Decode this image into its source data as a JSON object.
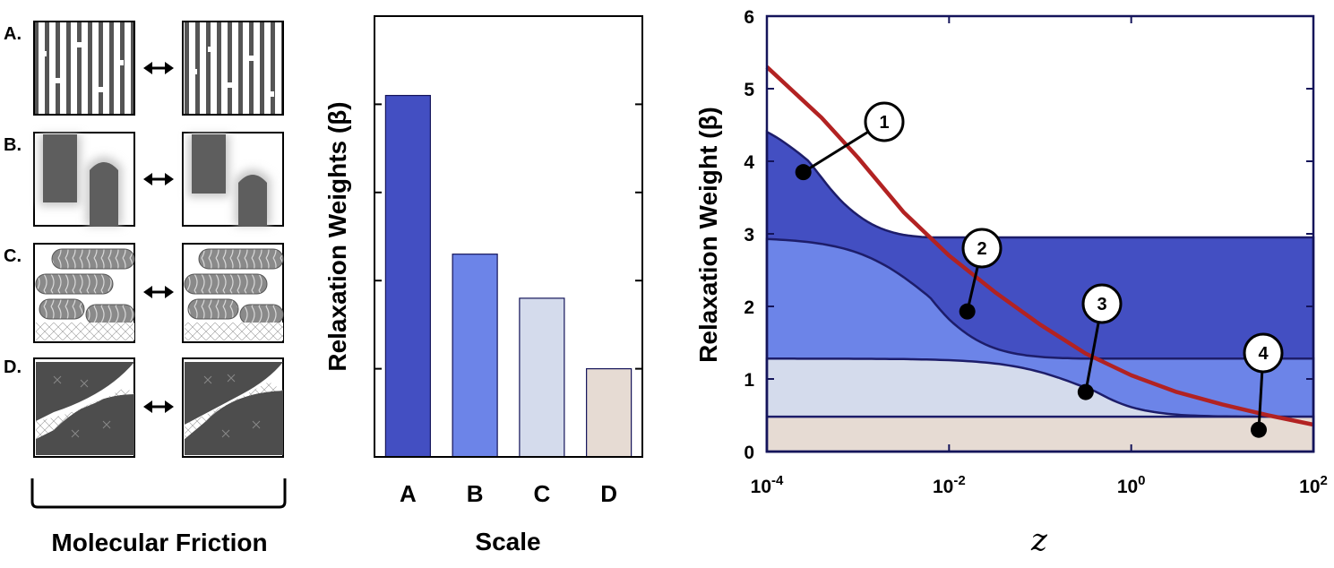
{
  "left_panel": {
    "rows": [
      {
        "label": "A.",
        "name": "row-a"
      },
      {
        "label": "B.",
        "name": "row-b"
      },
      {
        "label": "C.",
        "name": "row-c"
      },
      {
        "label": "D.",
        "name": "row-d"
      }
    ],
    "bracket_label": "Molecular Friction",
    "arrow_icon": "double-arrow-icon"
  },
  "chart_data": [
    {
      "type": "bar",
      "title": "",
      "xlabel": "Scale",
      "ylabel": "Relaxation Weights (β)",
      "categories": [
        "A",
        "B",
        "C",
        "D"
      ],
      "values": [
        4.1,
        2.3,
        1.8,
        1.0
      ],
      "ylim": [
        0,
        5
      ],
      "colors": [
        "#434fc2",
        "#6c84e8",
        "#d4dbec",
        "#e6dbd3"
      ],
      "grid": false
    },
    {
      "type": "area",
      "title": "",
      "xlabel": "z",
      "ylabel": "Relaxation Weight (β)",
      "xscale": "log",
      "xlim_log10": [
        -4,
        2
      ],
      "ylim": [
        0,
        6
      ],
      "yticks": [
        "0",
        "1",
        "2",
        "3",
        "4",
        "5",
        "6"
      ],
      "xticks": [
        {
          "base": "10",
          "exp": "-4",
          "log10": -4
        },
        {
          "base": "10",
          "exp": "-2",
          "log10": -2
        },
        {
          "base": "10",
          "exp": "0",
          "log10": 0
        },
        {
          "base": "10",
          "exp": "2",
          "log10": 2
        }
      ],
      "series": [
        {
          "name": "1",
          "plateau": 4.75,
          "decay_log10": -3.4,
          "color": "#434fc2"
        },
        {
          "name": "2",
          "plateau": 2.95,
          "decay_log10": -2.2,
          "color": "#6c84e8"
        },
        {
          "name": "3",
          "plateau": 1.28,
          "decay_log10": -0.5,
          "color": "#d4dbec"
        },
        {
          "name": "4",
          "plateau": 0.48,
          "decay_log10": 1.7,
          "color": "#e6dbd3"
        }
      ],
      "total_curve": {
        "color": "#b22222",
        "points": [
          [
            -4,
            5.3
          ],
          [
            -3.4,
            4.6
          ],
          [
            -3,
            4.05
          ],
          [
            -2.5,
            3.3
          ],
          [
            -2,
            2.7
          ],
          [
            -1.5,
            2.2
          ],
          [
            -1,
            1.75
          ],
          [
            -0.5,
            1.35
          ],
          [
            0,
            1.05
          ],
          [
            0.5,
            0.82
          ],
          [
            1,
            0.65
          ],
          [
            1.5,
            0.5
          ],
          [
            2,
            0.37
          ]
        ]
      },
      "annotations": [
        {
          "label": "1",
          "point": [
            -3.6,
            3.85
          ]
        },
        {
          "label": "2",
          "point": [
            -1.8,
            1.93
          ]
        },
        {
          "label": "3",
          "point": [
            -0.5,
            0.82
          ]
        },
        {
          "label": "4",
          "point": [
            1.4,
            0.3
          ]
        }
      ]
    }
  ]
}
